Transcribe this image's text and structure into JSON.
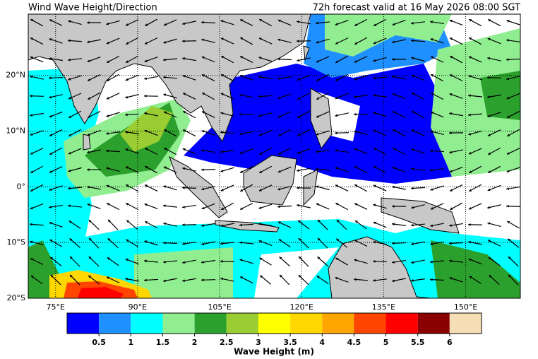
{
  "header": {
    "title": "Wind Wave Height/Direction",
    "valid": "72h forecast valid at 16 May 2026 08:00 SGT"
  },
  "map": {
    "xlim": [
      70,
      160
    ],
    "ylim": [
      -20,
      31
    ],
    "lat_ticks": [
      {
        "value": 20,
        "label": "20°N"
      },
      {
        "value": 10,
        "label": "10°N"
      },
      {
        "value": 0,
        "label": "0°"
      },
      {
        "value": -10,
        "label": "10°S"
      },
      {
        "value": -20,
        "label": "20°S"
      }
    ],
    "lon_ticks": [
      {
        "value": 75,
        "label": "75°E"
      },
      {
        "value": 90,
        "label": "90°E"
      },
      {
        "value": 105,
        "label": "105°E"
      },
      {
        "value": 120,
        "label": "120°E"
      },
      {
        "value": 135,
        "label": "135°E"
      },
      {
        "value": 150,
        "label": "150°E"
      }
    ]
  },
  "colorbar": {
    "label": "Wave Height (m)",
    "lim": [
      0,
      6.5
    ],
    "colors": [
      "#0000ff",
      "#1e90ff",
      "#00ffff",
      "#90ee90",
      "#2ca02c",
      "#9acd32",
      "#ffff00",
      "#ffd700",
      "#ffa500",
      "#ff4500",
      "#ff0000",
      "#8b0000",
      "#f5deb3"
    ],
    "ticks": [
      0.5,
      1,
      1.5,
      2,
      2.5,
      3,
      3.5,
      4,
      4.5,
      5,
      5.5,
      6
    ]
  }
}
